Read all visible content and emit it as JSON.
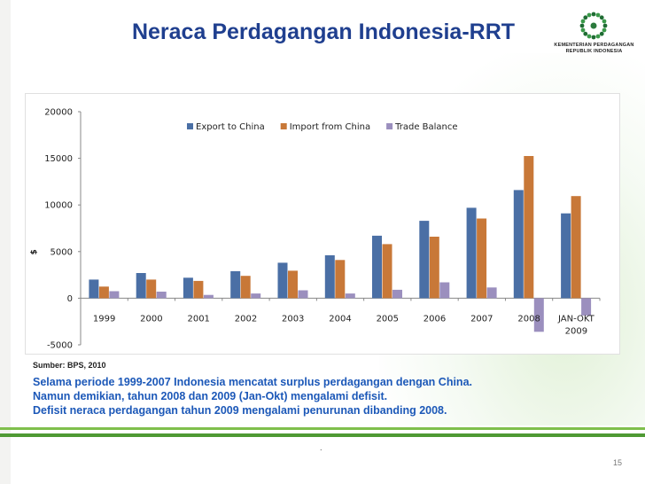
{
  "slide": {
    "title": "Neraca Perdagangan Indonesia-RRT",
    "logo_line1": "KEMENTERIAN PERDAGANGAN",
    "logo_line2": "REPUBLIK INDONESIA",
    "source": "Sumber: BPS, 2010",
    "notes": [
      "Selama periode 1999-2007 Indonesia mencatat surplus perdagangan dengan China.",
      "Namun demikian, tahun 2008 dan 2009 (Jan-Okt) mengalami defisit.",
      "Defisit neraca perdagangan tahun 2009 mengalami penurunan dibanding 2008."
    ],
    "dot": ".",
    "page_number": "15",
    "colors": {
      "title": "#1f3f8f",
      "note": "#1c58b8",
      "accent_green": "#7fbf4c"
    }
  },
  "chart_data": {
    "type": "bar",
    "categories": [
      "1999",
      "2000",
      "2001",
      "2002",
      "2003",
      "2004",
      "2005",
      "2006",
      "2007",
      "2008",
      "JAN-OKT\n2009"
    ],
    "series": [
      {
        "name": "Export to China",
        "color": "#4a6fa5",
        "values": [
          2000,
          2700,
          2200,
          2900,
          3800,
          4600,
          6700,
          8300,
          9700,
          11600,
          9100
        ]
      },
      {
        "name": "Import from China",
        "color": "#c87838",
        "values": [
          1250,
          2000,
          1850,
          2400,
          2950,
          4100,
          5800,
          6600,
          8550,
          15250,
          10950
        ]
      },
      {
        "name": "Trade Balance",
        "color": "#9b8fbe",
        "values": [
          750,
          700,
          350,
          500,
          850,
          500,
          900,
          1700,
          1150,
          -3600,
          -1850
        ]
      }
    ],
    "y_ticks": [
      20000,
      15000,
      10000,
      5000,
      0,
      -5000
    ],
    "ylim": [
      -5000,
      20000
    ],
    "ylabel": "$",
    "legend_position": "top-center",
    "grid": false
  }
}
